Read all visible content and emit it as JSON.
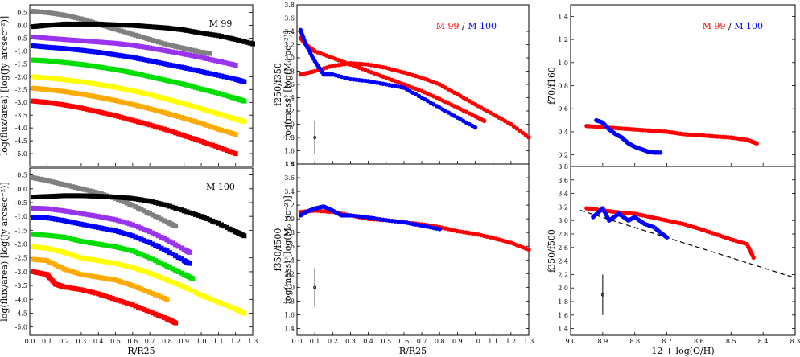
{
  "chart_data": [
    {
      "id": "p1",
      "type": "scatter",
      "title": "M 99",
      "ylabel": "log(flux/area) [log(Jy arcsec⁻²)]",
      "xlim": [
        0,
        1.3
      ],
      "ylim": [
        -5.5,
        0.8
      ],
      "yticks": [
        "0.5",
        "0.0",
        "-0.5",
        "-1.0",
        "-1.5",
        "-2.0",
        "-2.5",
        "-3.0",
        "-3.5",
        "-4.0",
        "-4.5",
        "-5.0"
      ],
      "series": [
        {
          "color": "#808080",
          "x": [
            0.02,
            0.1,
            0.2,
            0.3,
            0.4,
            0.5,
            0.6,
            0.7,
            0.8,
            0.9,
            1.0,
            1.05
          ],
          "y": [
            0.55,
            0.5,
            0.4,
            0.25,
            0.05,
            -0.15,
            -0.35,
            -0.55,
            -0.75,
            -0.9,
            -1.05,
            -1.1
          ]
        },
        {
          "color": "#000000",
          "x": [
            0.02,
            0.1,
            0.2,
            0.3,
            0.4,
            0.5,
            0.6,
            0.7,
            0.8,
            0.9,
            1.0,
            1.1,
            1.2,
            1.3
          ],
          "y": [
            -0.05,
            0.0,
            0.05,
            0.05,
            0.05,
            0.02,
            0.0,
            -0.05,
            -0.1,
            -0.18,
            -0.3,
            -0.4,
            -0.55,
            -0.72
          ]
        },
        {
          "color": "#9933ee",
          "x": [
            0.02,
            0.1,
            0.2,
            0.3,
            0.4,
            0.5,
            0.6,
            0.7,
            0.8,
            0.9,
            1.0,
            1.1,
            1.2
          ],
          "y": [
            -0.45,
            -0.5,
            -0.55,
            -0.6,
            -0.65,
            -0.7,
            -0.78,
            -0.88,
            -1.0,
            -1.12,
            -1.25,
            -1.4,
            -1.55
          ]
        },
        {
          "color": "#0000ff",
          "x": [
            0.02,
            0.1,
            0.2,
            0.3,
            0.4,
            0.5,
            0.6,
            0.7,
            0.8,
            0.9,
            1.0,
            1.1,
            1.2,
            1.25
          ],
          "y": [
            -0.8,
            -0.85,
            -0.9,
            -0.97,
            -1.05,
            -1.15,
            -1.25,
            -1.38,
            -1.52,
            -1.65,
            -1.8,
            -1.95,
            -2.1,
            -2.2
          ]
        },
        {
          "color": "#00dd00",
          "x": [
            0.02,
            0.1,
            0.2,
            0.3,
            0.4,
            0.5,
            0.6,
            0.7,
            0.8,
            0.9,
            1.0,
            1.1,
            1.2,
            1.25
          ],
          "y": [
            -1.35,
            -1.38,
            -1.45,
            -1.52,
            -1.62,
            -1.72,
            -1.85,
            -2.0,
            -2.15,
            -2.3,
            -2.48,
            -2.65,
            -2.85,
            -2.95
          ]
        },
        {
          "color": "#ffff00",
          "x": [
            0.02,
            0.1,
            0.2,
            0.3,
            0.4,
            0.5,
            0.6,
            0.7,
            0.8,
            0.9,
            1.0,
            1.1,
            1.2,
            1.25
          ],
          "y": [
            -2.0,
            -2.05,
            -2.12,
            -2.2,
            -2.3,
            -2.42,
            -2.55,
            -2.7,
            -2.88,
            -3.05,
            -3.25,
            -3.45,
            -3.65,
            -3.75
          ]
        },
        {
          "color": "#ffaa00",
          "x": [
            0.02,
            0.1,
            0.2,
            0.3,
            0.4,
            0.5,
            0.6,
            0.7,
            0.8,
            0.9,
            1.0,
            1.1,
            1.2
          ],
          "y": [
            -2.45,
            -2.5,
            -2.58,
            -2.68,
            -2.8,
            -2.93,
            -3.08,
            -3.25,
            -3.43,
            -3.62,
            -3.82,
            -4.05,
            -4.25
          ]
        },
        {
          "color": "#ff0000",
          "x": [
            0.02,
            0.1,
            0.2,
            0.3,
            0.4,
            0.5,
            0.6,
            0.7,
            0.8,
            0.9,
            1.0,
            1.1,
            1.2
          ],
          "y": [
            -2.95,
            -3.0,
            -3.1,
            -3.22,
            -3.37,
            -3.52,
            -3.7,
            -3.88,
            -4.08,
            -4.3,
            -4.52,
            -4.75,
            -5.0
          ]
        }
      ]
    },
    {
      "id": "p2",
      "type": "scatter",
      "title": "M 100",
      "ylabel": "log(flux/area) [log(Jy arcsec⁻²)]",
      "xlabel": "R/R25",
      "xlim": [
        0,
        1.3
      ],
      "ylim": [
        -5.3,
        0.75
      ],
      "xticks": [
        "0.0",
        "0.1",
        "0.2",
        "0.3",
        "0.4",
        "0.5",
        "0.6",
        "0.7",
        "0.8",
        "0.9",
        "1.0",
        "1.1",
        "1.2",
        "1.3"
      ],
      "yticks": [
        "0.5",
        "0.0",
        "-0.5",
        "-1.0",
        "-1.5",
        "-2.0",
        "-2.5",
        "-3.0",
        "-3.5",
        "-4.0",
        "-4.5",
        "-5.0"
      ],
      "series": [
        {
          "color": "#808080",
          "x": [
            0.02,
            0.1,
            0.2,
            0.3,
            0.4,
            0.5,
            0.6,
            0.7,
            0.8,
            0.85
          ],
          "y": [
            0.4,
            0.3,
            0.15,
            0.0,
            -0.15,
            -0.35,
            -0.6,
            -0.9,
            -1.2,
            -1.35
          ]
        },
        {
          "color": "#000000",
          "x": [
            0.02,
            0.1,
            0.2,
            0.3,
            0.4,
            0.5,
            0.6,
            0.7,
            0.8,
            0.9,
            1.0,
            1.1,
            1.2,
            1.25
          ],
          "y": [
            -0.3,
            -0.28,
            -0.25,
            -0.25,
            -0.27,
            -0.3,
            -0.35,
            -0.45,
            -0.6,
            -0.8,
            -1.0,
            -1.25,
            -1.55,
            -1.7
          ]
        },
        {
          "color": "#9933ee",
          "x": [
            0.02,
            0.1,
            0.2,
            0.3,
            0.4,
            0.5,
            0.6,
            0.7,
            0.8,
            0.9,
            0.93
          ],
          "y": [
            -0.7,
            -0.72,
            -0.8,
            -0.9,
            -1.0,
            -1.12,
            -1.3,
            -1.55,
            -1.85,
            -2.2,
            -2.3
          ]
        },
        {
          "color": "#0000ff",
          "x": [
            0.02,
            0.1,
            0.2,
            0.3,
            0.4,
            0.5,
            0.6,
            0.7,
            0.8,
            0.9,
            0.93
          ],
          "y": [
            -1.05,
            -1.05,
            -1.15,
            -1.28,
            -1.4,
            -1.52,
            -1.7,
            -1.95,
            -2.25,
            -2.6,
            -2.7
          ]
        },
        {
          "color": "#00dd00",
          "x": [
            0.02,
            0.1,
            0.2,
            0.3,
            0.4,
            0.5,
            0.6,
            0.7,
            0.8,
            0.9,
            0.95
          ],
          "y": [
            -1.65,
            -1.68,
            -1.75,
            -1.9,
            -2.0,
            -2.1,
            -2.25,
            -2.5,
            -2.8,
            -3.1,
            -3.25
          ]
        },
        {
          "color": "#ffff00",
          "x": [
            0.02,
            0.1,
            0.2,
            0.3,
            0.4,
            0.5,
            0.6,
            0.7,
            0.8,
            0.9,
            1.0,
            1.1,
            1.2,
            1.25
          ],
          "y": [
            -2.1,
            -2.15,
            -2.3,
            -2.5,
            -2.6,
            -2.7,
            -2.85,
            -3.05,
            -3.3,
            -3.55,
            -3.85,
            -4.1,
            -4.35,
            -4.5
          ]
        },
        {
          "color": "#ffaa00",
          "x": [
            0.02,
            0.1,
            0.2,
            0.3,
            0.4,
            0.5,
            0.6,
            0.7,
            0.8
          ],
          "y": [
            -2.55,
            -2.6,
            -2.9,
            -3.1,
            -3.2,
            -3.3,
            -3.5,
            -3.75,
            -4.0
          ]
        },
        {
          "color": "#ff0000",
          "x": [
            0.02,
            0.1,
            0.15,
            0.2,
            0.3,
            0.4,
            0.5,
            0.6,
            0.7,
            0.8,
            0.85
          ],
          "y": [
            -3.0,
            -3.1,
            -3.45,
            -3.55,
            -3.65,
            -3.8,
            -4.0,
            -4.2,
            -4.45,
            -4.7,
            -4.85
          ]
        }
      ]
    },
    {
      "id": "p3",
      "type": "scatter",
      "ylabel": "f250/f350",
      "ylabel2": "log(mass) [log(Mₒ pc⁻²)]",
      "legend": [
        {
          "text": "M 99",
          "color": "#ff0000"
        },
        {
          "text": " / ",
          "color": "#000000"
        },
        {
          "text": "M 100",
          "color": "#0000ff"
        }
      ],
      "xlim": [
        0,
        1.3
      ],
      "ylim": [
        1.4,
        3.8
      ],
      "yticks": [
        "3.8",
        "3.6",
        "3.4",
        "3.2",
        "3.0",
        "2.8",
        "2.6",
        "2.4",
        "2.2",
        "2.0",
        "1.8",
        "1.6",
        "1.4"
      ],
      "errorbar": {
        "x": 0.1,
        "y": 1.8,
        "yerr": 0.25
      },
      "series": [
        {
          "color": "#ff0000",
          "x": [
            0.02,
            0.1,
            0.2,
            0.3,
            0.4,
            0.5,
            0.6,
            0.7,
            0.8,
            0.9,
            1.0,
            1.1,
            1.2,
            1.3
          ],
          "y": [
            2.75,
            2.8,
            2.88,
            2.92,
            2.9,
            2.85,
            2.78,
            2.7,
            2.6,
            2.45,
            2.3,
            2.15,
            2.0,
            1.8
          ]
        },
        {
          "color": "#ff0000",
          "x": [
            0.02,
            0.05,
            0.1,
            0.2,
            0.3,
            0.4,
            0.5,
            0.6,
            0.7,
            0.8,
            0.9,
            1.0,
            1.05
          ],
          "y": [
            3.3,
            3.2,
            3.1,
            3.0,
            2.9,
            2.8,
            2.7,
            2.6,
            2.5,
            2.38,
            2.25,
            2.12,
            2.05
          ]
        },
        {
          "color": "#0000ff",
          "x": [
            0.02,
            0.05,
            0.1,
            0.15,
            0.2,
            0.3,
            0.4,
            0.5,
            0.6,
            0.7,
            0.8,
            0.9,
            1.0
          ],
          "y": [
            3.42,
            3.2,
            2.95,
            2.75,
            2.75,
            2.68,
            2.65,
            2.6,
            2.55,
            2.4,
            2.25,
            2.1,
            1.95
          ]
        }
      ]
    },
    {
      "id": "p4",
      "type": "scatter",
      "ylabel": "f350/f500",
      "ylabel2": "log(mass) [log(Mₒ pc⁻²)]",
      "xlabel": "R/R25",
      "xlim": [
        0,
        1.3
      ],
      "ylim": [
        1.3,
        3.8
      ],
      "xticks": [
        "0.0",
        "0.1",
        "0.2",
        "0.3",
        "0.4",
        "0.5",
        "0.6",
        "0.7",
        "0.8",
        "0.9",
        "1.0",
        "1.1",
        "1.2",
        "1.3"
      ],
      "yticks": [
        "3.8",
        "3.6",
        "3.4",
        "3.2",
        "3.0",
        "2.8",
        "2.6",
        "2.4",
        "2.2",
        "2.0",
        "1.8",
        "1.6",
        "1.4"
      ],
      "errorbar": {
        "x": 0.1,
        "y": 2.0,
        "yerr": 0.28
      },
      "series": [
        {
          "color": "#ff0000",
          "x": [
            0.02,
            0.1,
            0.2,
            0.3,
            0.4,
            0.5,
            0.6,
            0.7,
            0.8,
            0.9,
            1.0,
            1.1,
            1.2,
            1.3
          ],
          "y": [
            3.1,
            3.12,
            3.1,
            3.05,
            3.0,
            2.98,
            2.95,
            2.92,
            2.88,
            2.82,
            2.78,
            2.72,
            2.65,
            2.55
          ]
        },
        {
          "color": "#0000ff",
          "x": [
            0.02,
            0.05,
            0.1,
            0.15,
            0.2,
            0.25,
            0.3,
            0.4,
            0.5,
            0.6,
            0.7,
            0.8
          ],
          "y": [
            3.05,
            3.1,
            3.15,
            3.18,
            3.12,
            3.05,
            3.05,
            3.02,
            2.98,
            2.95,
            2.9,
            2.85
          ]
        }
      ]
    },
    {
      "id": "p5",
      "type": "scatter",
      "ylabel": "f70/f160",
      "legend": [
        {
          "text": "M 99",
          "color": "#ff0000"
        },
        {
          "text": " / ",
          "color": "#000000"
        },
        {
          "text": "M 100",
          "color": "#0000ff"
        }
      ],
      "xlim": [
        9.0,
        8.3
      ],
      "ylim": [
        0.1,
        1.5
      ],
      "yticks": [
        "1.4",
        "1.2",
        "1.0",
        "0.8",
        "0.6",
        "0.4",
        "0.2"
      ],
      "series": [
        {
          "color": "#ff0000",
          "x": [
            8.95,
            8.9,
            8.85,
            8.8,
            8.75,
            8.7,
            8.65,
            8.6,
            8.55,
            8.5,
            8.45,
            8.42
          ],
          "y": [
            0.45,
            0.44,
            0.43,
            0.42,
            0.41,
            0.4,
            0.38,
            0.37,
            0.36,
            0.35,
            0.33,
            0.3
          ]
        },
        {
          "color": "#0000ff",
          "x": [
            8.92,
            8.9,
            8.88,
            8.86,
            8.84,
            8.82,
            8.8,
            8.78,
            8.76,
            8.74,
            8.72
          ],
          "y": [
            0.5,
            0.48,
            0.42,
            0.38,
            0.35,
            0.3,
            0.27,
            0.25,
            0.23,
            0.22,
            0.22
          ]
        }
      ]
    },
    {
      "id": "p6",
      "type": "scatter",
      "ylabel": "f350/f500",
      "xlabel": "12 + log(O/H)",
      "xlim": [
        9.0,
        8.3
      ],
      "ylim": [
        1.3,
        3.8
      ],
      "xticks": [
        "9.0",
        "8.9",
        "8.8",
        "8.7",
        "8.6",
        "8.5",
        "8.4",
        "8.3"
      ],
      "yticks": [
        "3.8",
        "3.6",
        "3.4",
        "3.2",
        "3.0",
        "2.8",
        "2.6",
        "2.4",
        "2.2",
        "2.0",
        "1.8",
        "1.6",
        "1.4"
      ],
      "errorbar": {
        "x": 8.9,
        "y": 1.9,
        "yerr": 0.3
      },
      "fitline": {
        "x": [
          8.97,
          8.3
        ],
        "y": [
          3.15,
          2.15
        ]
      },
      "series": [
        {
          "color": "#ff0000",
          "x": [
            8.95,
            8.9,
            8.85,
            8.8,
            8.75,
            8.7,
            8.65,
            8.6,
            8.55,
            8.5,
            8.45,
            8.43
          ],
          "y": [
            3.18,
            3.15,
            3.12,
            3.1,
            3.05,
            3.0,
            2.95,
            2.88,
            2.8,
            2.72,
            2.65,
            2.45
          ]
        },
        {
          "color": "#0000ff",
          "x": [
            8.93,
            8.9,
            8.88,
            8.85,
            8.82,
            8.8,
            8.77,
            8.74,
            8.72,
            8.7
          ],
          "y": [
            3.05,
            3.18,
            3.0,
            3.1,
            3.0,
            3.05,
            2.95,
            2.9,
            2.82,
            2.75
          ]
        }
      ]
    }
  ]
}
